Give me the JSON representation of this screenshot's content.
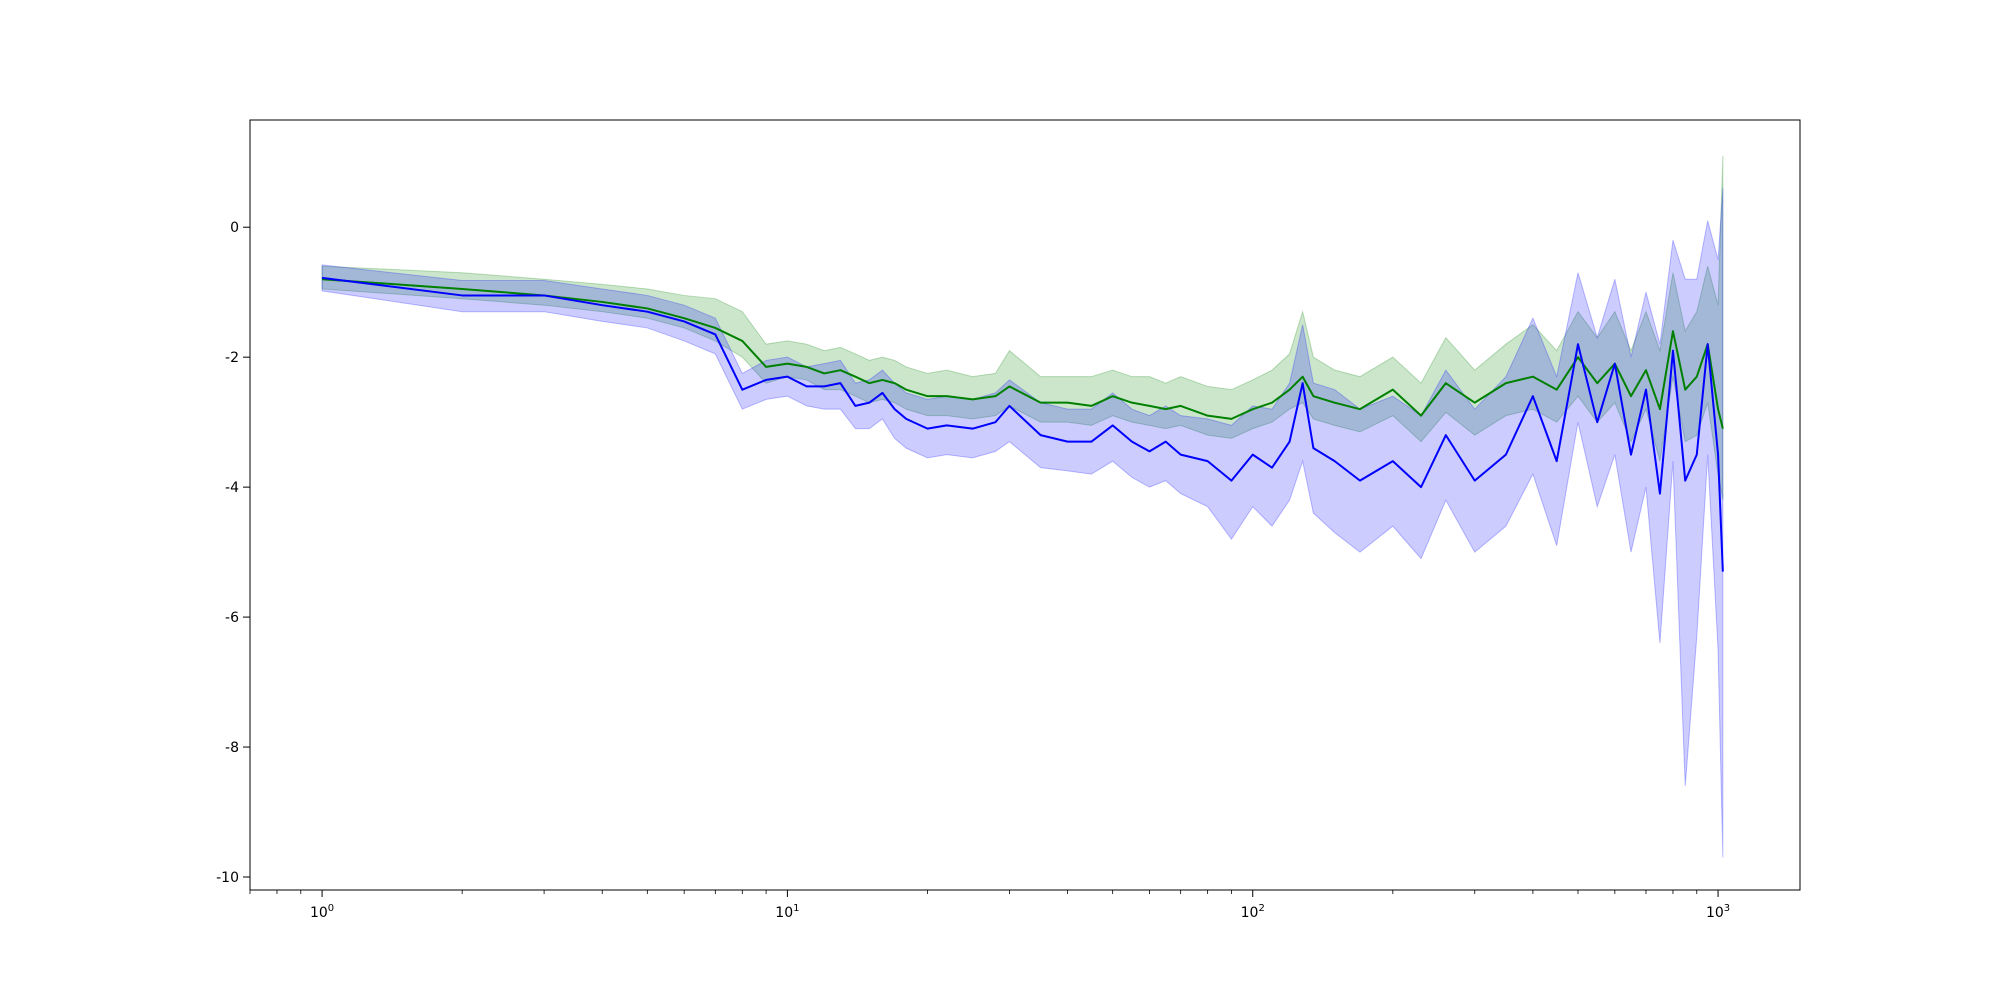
{
  "chart_data": {
    "type": "line",
    "title": "",
    "xlabel": "",
    "ylabel": "",
    "x_scale": "log",
    "xlim": [
      0.7,
      1500
    ],
    "ylim": [
      -10.2,
      1.65
    ],
    "grid": false,
    "x_ticks": [
      {
        "value": 1,
        "base": "10",
        "exp": "0"
      },
      {
        "value": 10,
        "base": "10",
        "exp": "1"
      },
      {
        "value": 100,
        "base": "10",
        "exp": "2"
      },
      {
        "value": 1000,
        "base": "10",
        "exp": "3"
      }
    ],
    "y_ticks": [
      {
        "value": 0,
        "label": "0"
      },
      {
        "value": -2,
        "label": "-2"
      },
      {
        "value": -4,
        "label": "-4"
      },
      {
        "value": -6,
        "label": "-6"
      },
      {
        "value": -8,
        "label": "-8"
      },
      {
        "value": -10,
        "label": "-10"
      }
    ],
    "series": [
      {
        "color": "#008000",
        "band_color": "#008000",
        "band_opacity": 0.2,
        "x": [
          1,
          2,
          3,
          4,
          5,
          6,
          7,
          8,
          9,
          10,
          11,
          12,
          13,
          14,
          15,
          16,
          17,
          18,
          20,
          22,
          25,
          28,
          30,
          35,
          40,
          45,
          50,
          55,
          60,
          65,
          70,
          80,
          90,
          100,
          110,
          120,
          128,
          135,
          150,
          170,
          200,
          230,
          260,
          300,
          350,
          400,
          450,
          500,
          550,
          600,
          650,
          700,
          750,
          800,
          850,
          900,
          950,
          1000,
          1024
        ],
        "y": [
          -0.8,
          -0.95,
          -1.05,
          -1.15,
          -1.25,
          -1.4,
          -1.55,
          -1.75,
          -2.15,
          -2.1,
          -2.15,
          -2.25,
          -2.2,
          -2.3,
          -2.4,
          -2.35,
          -2.4,
          -2.5,
          -2.6,
          -2.6,
          -2.65,
          -2.6,
          -2.45,
          -2.7,
          -2.7,
          -2.75,
          -2.6,
          -2.7,
          -2.75,
          -2.8,
          -2.75,
          -2.9,
          -2.95,
          -2.8,
          -2.7,
          -2.5,
          -2.3,
          -2.6,
          -2.7,
          -2.8,
          -2.5,
          -2.9,
          -2.4,
          -2.7,
          -2.4,
          -2.3,
          -2.5,
          -2.0,
          -2.4,
          -2.1,
          -2.6,
          -2.2,
          -2.8,
          -1.6,
          -2.5,
          -2.3,
          -1.8,
          -2.8,
          -3.1
        ],
        "lower": [
          -0.95,
          -1.1,
          -1.2,
          -1.3,
          -1.4,
          -1.55,
          -1.75,
          -2.0,
          -2.4,
          -2.3,
          -2.35,
          -2.5,
          -2.5,
          -2.6,
          -2.7,
          -2.65,
          -2.7,
          -2.8,
          -2.9,
          -2.9,
          -2.95,
          -2.9,
          -2.75,
          -3.0,
          -3.0,
          -3.05,
          -2.9,
          -3.0,
          -3.05,
          -3.1,
          -3.05,
          -3.2,
          -3.25,
          -3.1,
          -3.0,
          -2.8,
          -2.7,
          -2.95,
          -3.05,
          -3.15,
          -2.9,
          -3.3,
          -2.85,
          -3.2,
          -2.9,
          -2.8,
          -3.0,
          -2.6,
          -3.0,
          -2.7,
          -3.3,
          -2.8,
          -3.6,
          -2.3,
          -3.3,
          -3.2,
          -2.7,
          -3.8,
          -4.2
        ],
        "upper": [
          -0.6,
          -0.7,
          -0.8,
          -0.88,
          -0.95,
          -1.05,
          -1.1,
          -1.3,
          -1.8,
          -1.75,
          -1.8,
          -1.9,
          -1.85,
          -1.95,
          -2.05,
          -2.0,
          -2.05,
          -2.15,
          -2.25,
          -2.2,
          -2.3,
          -2.25,
          -1.9,
          -2.3,
          -2.3,
          -2.3,
          -2.2,
          -2.3,
          -2.3,
          -2.4,
          -2.3,
          -2.45,
          -2.5,
          -2.35,
          -2.2,
          -1.95,
          -1.3,
          -2.0,
          -2.2,
          -2.3,
          -2.0,
          -2.4,
          -1.7,
          -2.2,
          -1.8,
          -1.5,
          -1.9,
          -1.3,
          -1.7,
          -1.3,
          -1.9,
          -1.3,
          -1.9,
          -0.7,
          -1.6,
          -1.3,
          -0.6,
          -1.2,
          1.1
        ]
      },
      {
        "color": "#0000ff",
        "band_color": "#0000ff",
        "band_opacity": 0.2,
        "x": [
          1,
          2,
          3,
          4,
          5,
          6,
          7,
          8,
          9,
          10,
          11,
          12,
          13,
          14,
          15,
          16,
          17,
          18,
          20,
          22,
          25,
          28,
          30,
          35,
          40,
          45,
          50,
          55,
          60,
          65,
          70,
          80,
          90,
          100,
          110,
          120,
          128,
          135,
          150,
          170,
          200,
          230,
          260,
          300,
          350,
          400,
          450,
          500,
          550,
          600,
          650,
          700,
          750,
          800,
          850,
          900,
          950,
          1000,
          1024
        ],
        "y": [
          -0.78,
          -1.05,
          -1.05,
          -1.2,
          -1.3,
          -1.45,
          -1.65,
          -2.5,
          -2.35,
          -2.3,
          -2.45,
          -2.45,
          -2.4,
          -2.75,
          -2.7,
          -2.55,
          -2.8,
          -2.95,
          -3.1,
          -3.05,
          -3.1,
          -3.0,
          -2.75,
          -3.2,
          -3.3,
          -3.3,
          -3.05,
          -3.3,
          -3.45,
          -3.3,
          -3.5,
          -3.6,
          -3.9,
          -3.5,
          -3.7,
          -3.3,
          -2.4,
          -3.4,
          -3.6,
          -3.9,
          -3.6,
          -4.0,
          -3.2,
          -3.9,
          -3.5,
          -2.6,
          -3.6,
          -1.8,
          -3.0,
          -2.1,
          -3.5,
          -2.5,
          -4.1,
          -1.9,
          -3.9,
          -3.5,
          -1.8,
          -3.5,
          -5.3
        ],
        "lower": [
          -0.98,
          -1.3,
          -1.3,
          -1.45,
          -1.55,
          -1.75,
          -1.95,
          -2.8,
          -2.65,
          -2.6,
          -2.75,
          -2.8,
          -2.8,
          -3.1,
          -3.1,
          -2.95,
          -3.25,
          -3.4,
          -3.55,
          -3.5,
          -3.55,
          -3.45,
          -3.3,
          -3.7,
          -3.75,
          -3.8,
          -3.6,
          -3.85,
          -4.0,
          -3.9,
          -4.1,
          -4.3,
          -4.8,
          -4.3,
          -4.6,
          -4.2,
          -3.6,
          -4.4,
          -4.7,
          -5.0,
          -4.6,
          -5.1,
          -4.2,
          -5.0,
          -4.6,
          -3.8,
          -4.9,
          -3.0,
          -4.3,
          -3.5,
          -5.0,
          -4.0,
          -6.4,
          -3.6,
          -8.6,
          -6.3,
          -3.5,
          -6.5,
          -9.7
        ],
        "upper": [
          -0.58,
          -0.82,
          -0.82,
          -0.95,
          -1.05,
          -1.2,
          -1.4,
          -2.25,
          -2.05,
          -2.0,
          -2.15,
          -2.1,
          -2.05,
          -2.4,
          -2.35,
          -2.2,
          -2.4,
          -2.55,
          -2.65,
          -2.6,
          -2.65,
          -2.55,
          -2.35,
          -2.7,
          -2.8,
          -2.8,
          -2.55,
          -2.8,
          -2.9,
          -2.75,
          -2.9,
          -2.95,
          -3.05,
          -2.75,
          -2.8,
          -2.4,
          -1.5,
          -2.4,
          -2.5,
          -2.8,
          -2.6,
          -2.9,
          -2.2,
          -2.8,
          -2.3,
          -1.4,
          -2.3,
          -0.7,
          -1.7,
          -0.8,
          -2.0,
          -1.0,
          -1.8,
          -0.2,
          -0.8,
          -0.8,
          0.1,
          -0.5,
          0.6
        ]
      }
    ]
  }
}
